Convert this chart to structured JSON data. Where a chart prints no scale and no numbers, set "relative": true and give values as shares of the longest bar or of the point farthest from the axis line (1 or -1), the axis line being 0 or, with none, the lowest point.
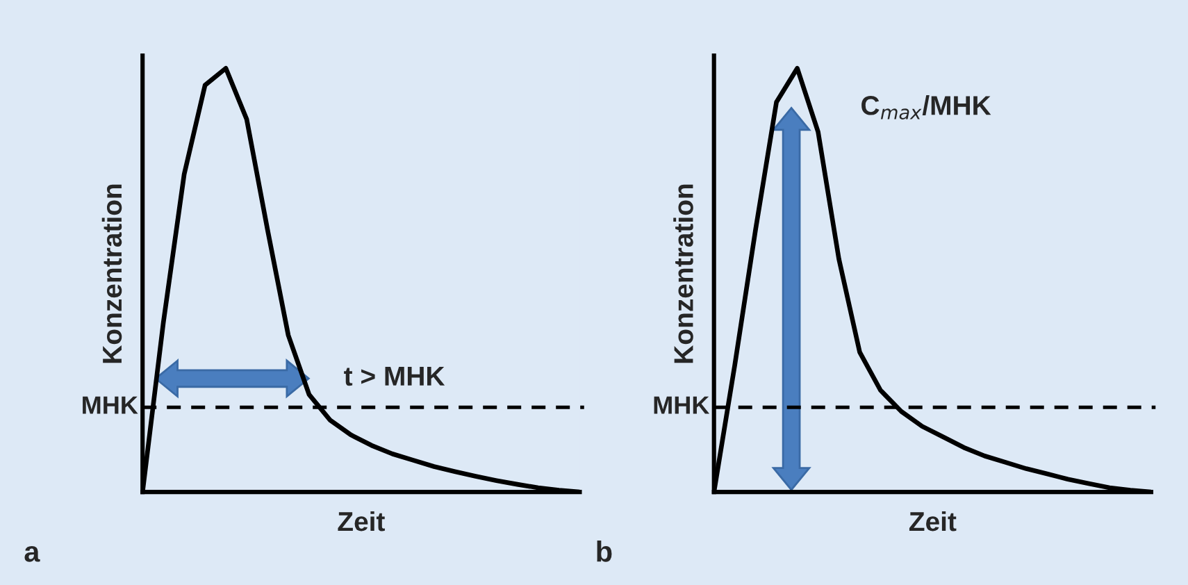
{
  "chart_data": [
    {
      "type": "line",
      "relative": true,
      "xlabel": "Zeit",
      "ylabel": "Konzentration",
      "tick_labels": false,
      "line_style": "solid",
      "marker": "none",
      "categories": [
        null,
        null,
        null,
        null,
        null,
        null,
        null,
        null,
        null,
        null,
        null,
        null,
        null,
        null,
        null,
        null,
        null,
        null,
        null,
        null,
        null,
        null
      ],
      "series": [
        {
          "color": "#000000",
          "values": [
            0,
            0.4,
            0.75,
            0.96,
            1,
            0.88,
            0.62,
            0.37,
            0.23,
            0.17,
            0.135,
            0.11,
            0.09,
            0.075,
            0.06,
            0.048,
            0.037,
            0.027,
            0.018,
            0.01,
            0.004,
            0
          ]
        }
      ],
      "ref_lines": [
        {
          "axis": "y",
          "value": 0.2,
          "label": "MHK",
          "line_style": "dashed",
          "color": "#000000"
        }
      ],
      "annotations": [
        "t > MHK",
        "a"
      ]
    },
    {
      "type": "line",
      "relative": true,
      "xlabel": "Zeit",
      "ylabel": "Konzentration",
      "tick_labels": false,
      "line_style": "solid",
      "marker": "none",
      "categories": [
        null,
        null,
        null,
        null,
        null,
        null,
        null,
        null,
        null,
        null,
        null,
        null,
        null,
        null,
        null,
        null,
        null,
        null,
        null,
        null,
        null,
        null
      ],
      "series": [
        {
          "color": "#000000",
          "values": [
            0,
            0.3,
            0.62,
            0.92,
            1,
            0.85,
            0.55,
            0.33,
            0.24,
            0.19,
            0.155,
            0.13,
            0.105,
            0.085,
            0.07,
            0.055,
            0.043,
            0.03,
            0.02,
            0.01,
            0.004,
            0
          ]
        }
      ],
      "ref_lines": [
        {
          "axis": "y",
          "value": 0.2,
          "label": "MHK",
          "line_style": "dashed",
          "color": "#000000"
        }
      ],
      "annotations": [
        "C$_{max}$/MHK",
        "b"
      ]
    }
  ]
}
